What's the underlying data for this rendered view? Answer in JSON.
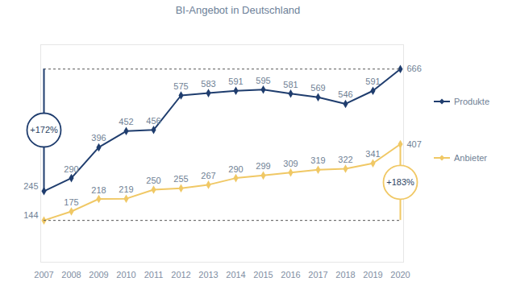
{
  "chart_data": {
    "type": "line",
    "title": "BI-Angebot in Deutschland",
    "categories": [
      "2007",
      "2008",
      "2009",
      "2010",
      "2011",
      "2012",
      "2013",
      "2014",
      "2015",
      "2016",
      "2017",
      "2018",
      "2019",
      "2020"
    ],
    "series": [
      {
        "name": "Produkte",
        "color": "#1f3d6e",
        "marker": "diamond",
        "values": [
          245,
          290,
          396,
          452,
          456,
          575,
          583,
          591,
          595,
          581,
          569,
          546,
          591,
          666
        ]
      },
      {
        "name": "Anbieter",
        "color": "#f0c865",
        "marker": "diamond",
        "values": [
          144,
          175,
          218,
          219,
          250,
          255,
          267,
          290,
          299,
          309,
          319,
          322,
          341,
          407
        ]
      }
    ],
    "ylim": [
      0,
      750
    ],
    "yticks": [],
    "tick_labels": "x",
    "data_labels": true,
    "legend": "right",
    "annotations": [
      {
        "text": "+172%",
        "series": "Produkte",
        "at": "2007"
      },
      {
        "text": "+183%",
        "series": "Anbieter",
        "at": "2020"
      }
    ]
  }
}
